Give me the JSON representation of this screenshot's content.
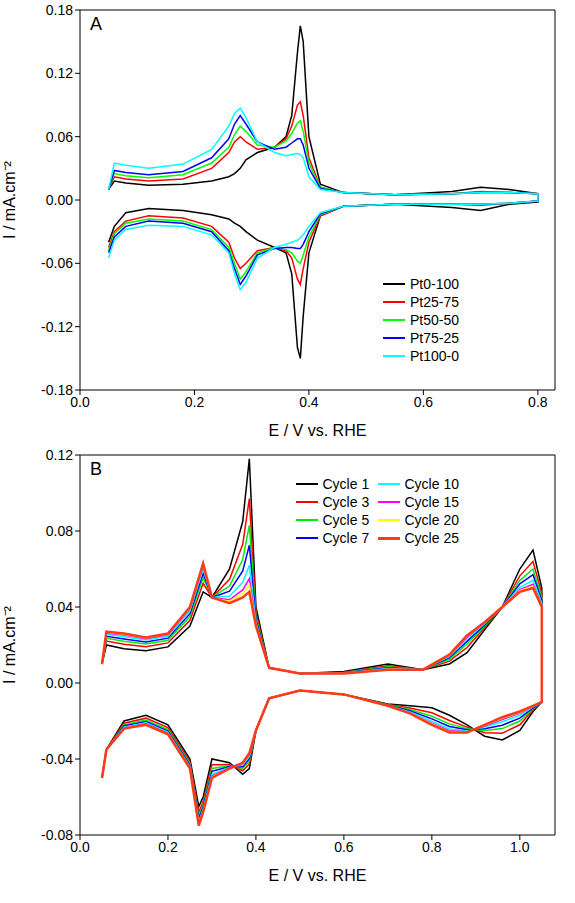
{
  "chart_data": [
    {
      "type": "line",
      "title": "A",
      "x_label": "E / V vs. RHE",
      "y_label": "I / mA.cm⁻²",
      "xlim": [
        0,
        0.83
      ],
      "xticks": [
        {
          "value": 0,
          "label": "0.0"
        },
        0.2,
        0.4,
        0.6,
        0.8
      ],
      "ylim": [
        -0.18,
        0.18
      ],
      "yticks": [
        -0.18,
        -0.12,
        -0.06,
        {
          "value": 0,
          "label": "0.00"
        },
        0.06,
        0.12,
        0.18
      ],
      "grid": false,
      "legend": "lower right",
      "x": [
        0.05,
        0.06,
        0.08,
        0.12,
        0.18,
        0.23,
        0.26,
        0.27,
        0.28,
        0.29,
        0.31,
        0.34,
        0.36,
        0.37,
        0.38,
        0.385,
        0.39,
        0.4,
        0.42,
        0.46,
        0.55,
        0.65,
        0.7,
        0.75,
        0.8,
        0.8,
        0.75,
        0.7,
        0.65,
        0.55,
        0.46,
        0.42,
        0.4,
        0.39,
        0.385,
        0.38,
        0.37,
        0.36,
        0.34,
        0.31,
        0.29,
        0.28,
        0.27,
        0.26,
        0.23,
        0.18,
        0.12,
        0.08,
        0.06,
        0.05
      ],
      "series": [
        {
          "name": "Pt0-100",
          "color": "#000000",
          "values": [
            0.01,
            0.018,
            0.016,
            0.014,
            0.015,
            0.018,
            0.022,
            0.025,
            0.03,
            0.038,
            0.045,
            0.05,
            0.06,
            0.08,
            0.14,
            0.165,
            0.15,
            0.06,
            0.015,
            0.007,
            0.005,
            0.008,
            0.012,
            0.01,
            0.006,
            -0.002,
            -0.004,
            -0.01,
            -0.007,
            -0.004,
            -0.006,
            -0.015,
            -0.05,
            -0.11,
            -0.15,
            -0.14,
            -0.07,
            -0.05,
            -0.045,
            -0.038,
            -0.03,
            -0.025,
            -0.022,
            -0.018,
            -0.014,
            -0.01,
            -0.008,
            -0.012,
            -0.025,
            -0.04
          ]
        },
        {
          "name": "Pt25-75",
          "color": "#ff0000",
          "values": [
            0.01,
            0.022,
            0.02,
            0.018,
            0.02,
            0.03,
            0.045,
            0.055,
            0.06,
            0.055,
            0.048,
            0.05,
            0.058,
            0.07,
            0.09,
            0.093,
            0.08,
            0.04,
            0.012,
            0.007,
            0.005,
            0.006,
            0.008,
            0.007,
            0.006,
            -0.001,
            -0.003,
            -0.005,
            -0.004,
            -0.004,
            -0.006,
            -0.015,
            -0.04,
            -0.065,
            -0.08,
            -0.075,
            -0.055,
            -0.048,
            -0.045,
            -0.048,
            -0.06,
            -0.065,
            -0.055,
            -0.04,
            -0.025,
            -0.017,
            -0.015,
            -0.02,
            -0.03,
            -0.045
          ]
        },
        {
          "name": "Pt50-50",
          "color": "#00ff00",
          "values": [
            0.01,
            0.025,
            0.023,
            0.021,
            0.024,
            0.035,
            0.05,
            0.062,
            0.07,
            0.065,
            0.052,
            0.05,
            0.056,
            0.063,
            0.073,
            0.075,
            0.065,
            0.035,
            0.012,
            0.007,
            0.005,
            0.006,
            0.007,
            0.007,
            0.006,
            -0.001,
            -0.003,
            -0.004,
            -0.004,
            -0.004,
            -0.006,
            -0.014,
            -0.035,
            -0.052,
            -0.06,
            -0.058,
            -0.05,
            -0.047,
            -0.045,
            -0.05,
            -0.068,
            -0.075,
            -0.06,
            -0.045,
            -0.028,
            -0.02,
            -0.018,
            -0.022,
            -0.032,
            -0.048
          ]
        },
        {
          "name": "Pt75-25",
          "color": "#0000ff",
          "values": [
            0.01,
            0.028,
            0.026,
            0.024,
            0.027,
            0.04,
            0.058,
            0.072,
            0.08,
            0.072,
            0.055,
            0.048,
            0.05,
            0.054,
            0.058,
            0.058,
            0.052,
            0.03,
            0.011,
            0.007,
            0.005,
            0.006,
            0.007,
            0.007,
            0.006,
            -0.001,
            -0.003,
            -0.004,
            -0.004,
            -0.004,
            -0.006,
            -0.013,
            -0.03,
            -0.042,
            -0.046,
            -0.046,
            -0.045,
            -0.045,
            -0.046,
            -0.052,
            -0.072,
            -0.08,
            -0.065,
            -0.048,
            -0.03,
            -0.022,
            -0.02,
            -0.025,
            -0.035,
            -0.05
          ]
        },
        {
          "name": "Pt100-0",
          "color": "#00ffff",
          "values": [
            0.01,
            0.035,
            0.033,
            0.03,
            0.034,
            0.048,
            0.07,
            0.082,
            0.087,
            0.078,
            0.055,
            0.045,
            0.042,
            0.043,
            0.044,
            0.043,
            0.04,
            0.022,
            0.01,
            0.007,
            0.005,
            0.006,
            0.007,
            0.007,
            0.006,
            -0.001,
            -0.003,
            -0.004,
            -0.004,
            -0.004,
            -0.006,
            -0.012,
            -0.025,
            -0.033,
            -0.036,
            -0.038,
            -0.04,
            -0.042,
            -0.045,
            -0.055,
            -0.078,
            -0.085,
            -0.07,
            -0.05,
            -0.033,
            -0.025,
            -0.024,
            -0.028,
            -0.038,
            -0.055
          ]
        }
      ]
    },
    {
      "type": "line",
      "title": "B",
      "x_label": "E / V vs. RHE",
      "y_label": "I / mA.cm⁻²",
      "xlim": [
        0,
        1.08
      ],
      "xticks": [
        {
          "value": 0,
          "label": "0.0"
        },
        0.2,
        0.4,
        0.6,
        0.8,
        {
          "value": 1,
          "label": "1.0"
        }
      ],
      "ylim": [
        -0.08,
        0.12
      ],
      "yticks": [
        -0.08,
        -0.04,
        {
          "value": 0,
          "label": "0.00"
        },
        0.04,
        0.08,
        0.12
      ],
      "grid": false,
      "legend": "upper center",
      "x": [
        0.05,
        0.06,
        0.1,
        0.15,
        0.2,
        0.25,
        0.28,
        0.3,
        0.34,
        0.37,
        0.385,
        0.4,
        0.43,
        0.5,
        0.6,
        0.7,
        0.78,
        0.84,
        0.88,
        0.92,
        0.96,
        1.0,
        1.03,
        1.05,
        1.05,
        1.03,
        1.0,
        0.96,
        0.92,
        0.88,
        0.84,
        0.8,
        0.75,
        0.7,
        0.6,
        0.5,
        0.43,
        0.4,
        0.385,
        0.37,
        0.34,
        0.3,
        0.28,
        0.27,
        0.25,
        0.2,
        0.15,
        0.1,
        0.06,
        0.05
      ],
      "series": [
        {
          "name": "Cycle 1",
          "color": "#000000",
          "values": [
            0.01,
            0.02,
            0.018,
            0.017,
            0.019,
            0.03,
            0.048,
            0.045,
            0.06,
            0.085,
            0.118,
            0.04,
            0.008,
            0.005,
            0.006,
            0.01,
            0.007,
            0.01,
            0.016,
            0.028,
            0.04,
            0.06,
            0.07,
            0.05,
            -0.01,
            -0.015,
            -0.025,
            -0.03,
            -0.028,
            -0.022,
            -0.017,
            -0.013,
            -0.012,
            -0.011,
            -0.006,
            -0.004,
            -0.008,
            -0.025,
            -0.045,
            -0.048,
            -0.042,
            -0.04,
            -0.06,
            -0.065,
            -0.04,
            -0.022,
            -0.017,
            -0.02,
            -0.035,
            -0.05
          ]
        },
        {
          "name": "Cycle 3",
          "color": "#ff0000",
          "values": [
            0.01,
            0.0221,
            0.0204,
            0.0191,
            0.0211,
            0.033,
            0.0525,
            0.045,
            0.0546,
            0.073,
            0.097,
            0.037,
            0.008,
            0.005,
            0.0057,
            0.0091,
            0.007,
            0.0115,
            0.0187,
            0.0292,
            0.04,
            0.0564,
            0.064,
            0.047,
            -0.01,
            -0.0141,
            -0.022,
            -0.0264,
            -0.0262,
            -0.0232,
            -0.0197,
            -0.0157,
            -0.0132,
            -0.0113,
            -0.006,
            -0.004,
            -0.008,
            -0.025,
            -0.0426,
            -0.0462,
            -0.0429,
            -0.043,
            -0.0624,
            -0.068,
            -0.0415,
            -0.0235,
            -0.0185,
            -0.0212,
            -0.035,
            -0.05
          ]
        },
        {
          "name": "Cycle 5",
          "color": "#00ee00",
          "values": [
            0.01,
            0.0235,
            0.022,
            0.0205,
            0.0225,
            0.035,
            0.0555,
            0.045,
            0.051,
            0.065,
            0.083,
            0.035,
            0.008,
            0.005,
            0.0055,
            0.0085,
            0.007,
            0.0125,
            0.0205,
            0.03,
            0.04,
            0.054,
            0.06,
            0.045,
            -0.01,
            -0.0135,
            -0.02,
            -0.024,
            -0.025,
            -0.024,
            -0.0215,
            -0.0175,
            -0.014,
            -0.0115,
            -0.006,
            -0.004,
            -0.008,
            -0.025,
            -0.041,
            -0.045,
            -0.0435,
            -0.045,
            -0.064,
            -0.07,
            -0.0425,
            -0.0245,
            -0.0195,
            -0.022,
            -0.035,
            -0.05
          ]
        },
        {
          "name": "Cycle 7",
          "color": "#0000ff",
          "values": [
            0.01,
            0.0246,
            0.0232,
            0.0216,
            0.0236,
            0.0365,
            0.0578,
            0.045,
            0.0483,
            0.059,
            0.0725,
            0.0335,
            0.008,
            0.005,
            0.0054,
            0.008,
            0.007,
            0.0133,
            0.0219,
            0.0306,
            0.04,
            0.0522,
            0.057,
            0.0435,
            -0.01,
            -0.0131,
            -0.0185,
            -0.0222,
            -0.0241,
            -0.0246,
            -0.0229,
            -0.0189,
            -0.0146,
            -0.0117,
            -0.006,
            -0.004,
            -0.008,
            -0.025,
            -0.0398,
            -0.0441,
            -0.044,
            -0.0465,
            -0.0652,
            -0.0715,
            -0.0433,
            -0.0253,
            -0.0203,
            -0.0226,
            -0.035,
            -0.05
          ]
        },
        {
          "name": "Cycle 10",
          "color": "#00ffff",
          "values": [
            0.01,
            0.0256,
            0.0244,
            0.0226,
            0.0246,
            0.038,
            0.06,
            0.045,
            0.0456,
            0.053,
            0.062,
            0.032,
            0.008,
            0.005,
            0.0052,
            0.0076,
            0.007,
            0.014,
            0.0232,
            0.0312,
            0.04,
            0.0504,
            0.054,
            0.042,
            -0.01,
            -0.0126,
            -0.017,
            -0.0204,
            -0.0232,
            -0.0252,
            -0.0242,
            -0.0202,
            -0.0152,
            -0.0118,
            -0.006,
            -0.004,
            -0.008,
            -0.025,
            -0.0386,
            -0.0432,
            -0.0444,
            -0.048,
            -0.0664,
            -0.073,
            -0.044,
            -0.026,
            -0.021,
            -0.0232,
            -0.035,
            -0.05
          ]
        },
        {
          "name": "Cycle 15",
          "color": "#ff00ff",
          "values": [
            0.01,
            0.0263,
            0.0252,
            0.0233,
            0.0253,
            0.039,
            0.0615,
            0.045,
            0.0438,
            0.049,
            0.055,
            0.031,
            0.008,
            0.005,
            0.0051,
            0.0073,
            0.007,
            0.0145,
            0.0241,
            0.0316,
            0.04,
            0.0492,
            0.052,
            0.041,
            -0.01,
            -0.0123,
            -0.016,
            -0.0192,
            -0.0226,
            -0.0256,
            -0.0251,
            -0.0211,
            -0.0156,
            -0.0119,
            -0.006,
            -0.004,
            -0.008,
            -0.025,
            -0.0378,
            -0.0426,
            -0.0447,
            -0.049,
            -0.0672,
            -0.074,
            -0.0445,
            -0.0265,
            -0.0215,
            -0.0236,
            -0.035,
            -0.05
          ]
        },
        {
          "name": "Cycle 20",
          "color": "#ffff00",
          "values": [
            0.01,
            0.0267,
            0.0256,
            0.0237,
            0.0257,
            0.0395,
            0.0623,
            0.045,
            0.0429,
            0.047,
            0.0515,
            0.0305,
            0.008,
            0.005,
            0.005,
            0.0072,
            0.007,
            0.0148,
            0.0246,
            0.0318,
            0.04,
            0.0486,
            0.051,
            0.0405,
            -0.01,
            -0.0122,
            -0.0155,
            -0.0186,
            -0.0223,
            -0.0258,
            -0.0256,
            -0.0216,
            -0.0158,
            -0.012,
            -0.006,
            -0.004,
            -0.008,
            -0.025,
            -0.0374,
            -0.0423,
            -0.0449,
            -0.0495,
            -0.0676,
            -0.0745,
            -0.0448,
            -0.0268,
            -0.0218,
            -0.0238,
            -0.035,
            -0.05
          ]
        },
        {
          "name": "Cycle 25",
          "color": "#ff3a1a",
          "values": [
            0.01,
            0.027,
            0.026,
            0.024,
            0.026,
            0.04,
            0.063,
            0.045,
            0.042,
            0.045,
            0.048,
            0.03,
            0.008,
            0.005,
            0.005,
            0.007,
            0.007,
            0.015,
            0.025,
            0.032,
            0.04,
            0.048,
            0.05,
            0.04,
            -0.01,
            -0.012,
            -0.015,
            -0.018,
            -0.022,
            -0.026,
            -0.026,
            -0.022,
            -0.016,
            -0.012,
            -0.006,
            -0.004,
            -0.008,
            -0.025,
            -0.037,
            -0.042,
            -0.045,
            -0.05,
            -0.068,
            -0.075,
            -0.045,
            -0.027,
            -0.022,
            -0.024,
            -0.035,
            -0.05
          ]
        }
      ]
    }
  ]
}
